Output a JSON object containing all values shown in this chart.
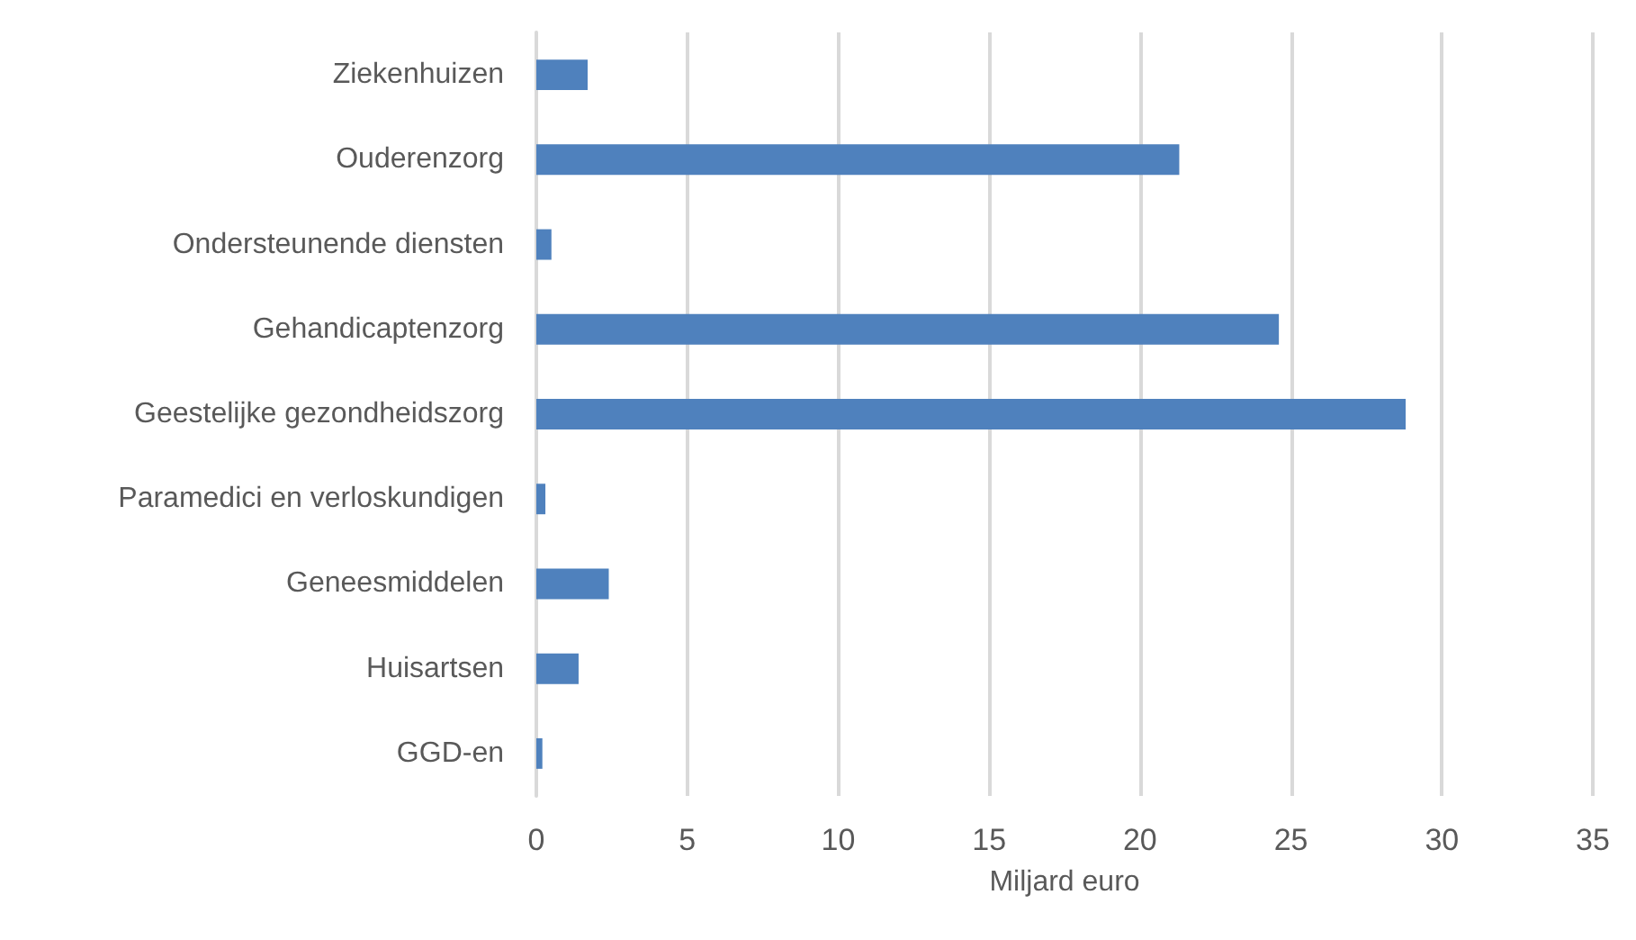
{
  "chart_data": {
    "type": "bar",
    "orientation": "horizontal",
    "xlabel": "Miljard euro",
    "categories": [
      "Ziekenhuizen",
      "Ouderenzorg",
      "Ondersteunende diensten",
      "Gehandicaptenzorg",
      "Geestelijke gezondheidszorg",
      "Paramedici en verloskundigen",
      "Geneesmiddelen",
      "Huisartsen",
      "GGD-en"
    ],
    "values": [
      1.7,
      21.3,
      0.5,
      24.6,
      28.8,
      0.3,
      2.4,
      1.4,
      0.2
    ],
    "color": "#4f81bd",
    "xlim": [
      0,
      35
    ],
    "xticks": [
      0,
      5,
      10,
      15,
      20,
      25,
      30,
      35
    ],
    "grid": "x"
  }
}
